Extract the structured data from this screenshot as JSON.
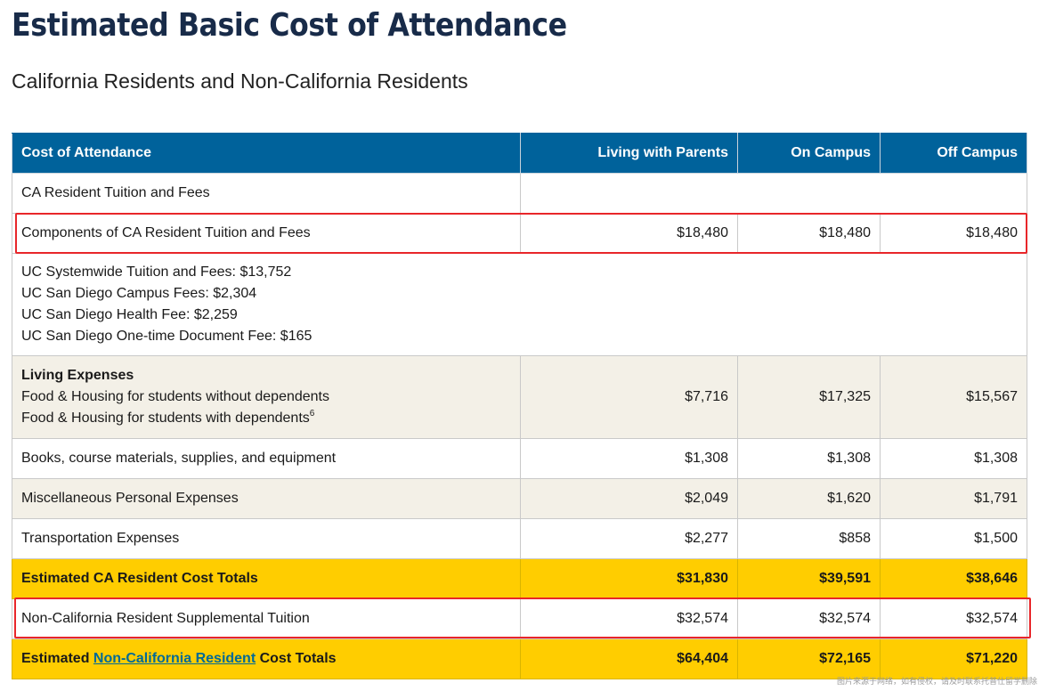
{
  "page": {
    "title": "Estimated Basic Cost of Attendance",
    "subtitle": "California Residents and Non-California Residents"
  },
  "table": {
    "headers": [
      "Cost of Attendance",
      "Living with Parents",
      "On Campus",
      "Off Campus"
    ],
    "rows": {
      "ca_tuition_heading": {
        "label": "CA Resident Tuition and Fees"
      },
      "components": {
        "label": "Components of CA Resident Tuition and Fees",
        "values": [
          "$18,480",
          "$18,480",
          "$18,480"
        ]
      },
      "component_details": [
        "UC Systemwide Tuition and Fees: $13,752",
        "UC San Diego Campus Fees: $2,304",
        "UC San Diego Health Fee: $2,259",
        "UC San Diego One-time Document Fee: $165"
      ],
      "living": {
        "label": "Living Expenses",
        "line1": "Food & Housing for students without dependents",
        "line2": "Food & Housing for students with dependents",
        "footnote": "6",
        "values": [
          "$7,716",
          "$17,325",
          "$15,567"
        ]
      },
      "books": {
        "label": "Books, course materials, supplies, and equipment",
        "values": [
          "$1,308",
          "$1,308",
          "$1,308"
        ]
      },
      "misc": {
        "label": "Miscellaneous Personal Expenses",
        "values": [
          "$2,049",
          "$1,620",
          "$1,791"
        ]
      },
      "transport": {
        "label": "Transportation Expenses",
        "values": [
          "$2,277",
          "$858",
          "$1,500"
        ]
      },
      "ca_totals": {
        "label": "Estimated CA Resident Cost Totals",
        "values": [
          "$31,830",
          "$39,591",
          "$38,646"
        ]
      },
      "nonres_tuition": {
        "label": "Non-California Resident Supplemental Tuition",
        "values": [
          "$32,574",
          "$32,574",
          "$32,574"
        ]
      },
      "nonres_totals": {
        "label_prefix": "Estimated ",
        "link_text": "Non-California Resident",
        "label_suffix": " Cost Totals",
        "values": [
          "$64,404",
          "$72,165",
          "$71,220"
        ]
      }
    }
  },
  "colors": {
    "title": "#182b49",
    "header_bg": "#00629b",
    "beige_row": "#f3f0e7",
    "gold_row": "#ffcd00",
    "highlight": "#e8262a",
    "link": "#006a96"
  },
  "watermark": "图片来源于网络，如有侵权，请及时联系托普仕留学删除"
}
